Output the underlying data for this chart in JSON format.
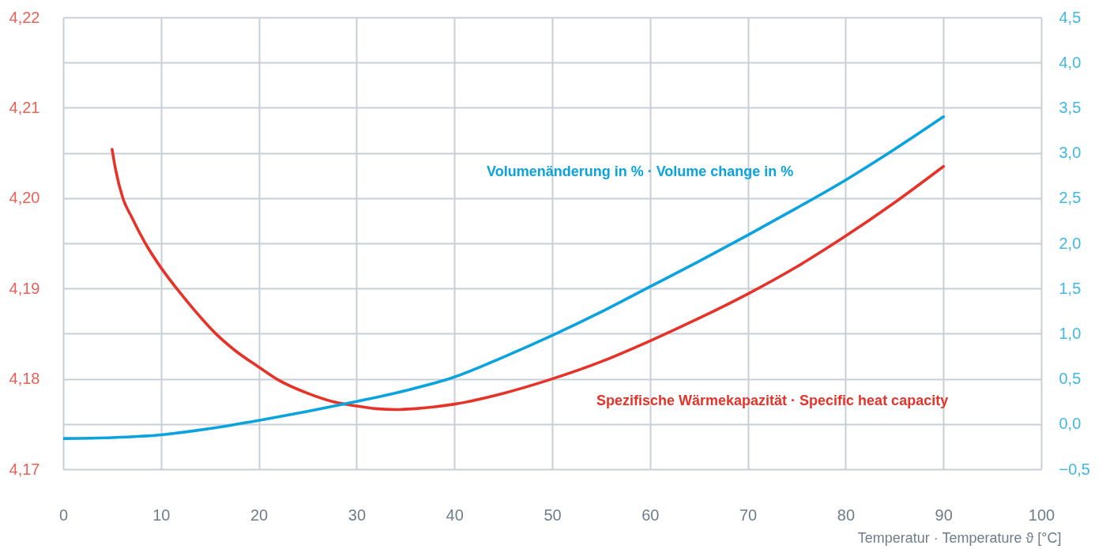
{
  "chart_data": {
    "type": "line",
    "xlabel": "Temperatur · Temperature ϑ [°C]",
    "xlim": [
      0,
      100
    ],
    "xticks": [
      0,
      10,
      20,
      30,
      40,
      50,
      60,
      70,
      80,
      90,
      100
    ],
    "ylim": [
      4.17,
      4.22
    ],
    "yticks": [
      {
        "value": 4.17,
        "label": "4,17"
      },
      {
        "value": 4.18,
        "label": "4,18"
      },
      {
        "value": 4.19,
        "label": "4,19"
      },
      {
        "value": 4.2,
        "label": "4,20"
      },
      {
        "value": 4.21,
        "label": "4,21"
      },
      {
        "value": 4.22,
        "label": "4,22"
      }
    ],
    "y2lim": [
      -0.5,
      4.5
    ],
    "y2ticks": [
      {
        "value": -0.5,
        "label": "−0,5"
      },
      {
        "value": 0,
        "label": "0,0"
      },
      {
        "value": 0.5,
        "label": "0,5"
      },
      {
        "value": 1,
        "label": "1,0"
      },
      {
        "value": 1.5,
        "label": "1,5"
      },
      {
        "value": 2,
        "label": "2,0"
      },
      {
        "value": 2.5,
        "label": "2,5"
      },
      {
        "value": 3,
        "label": "3,0"
      },
      {
        "value": 3.5,
        "label": "3,5"
      },
      {
        "value": 4,
        "label": "4,0"
      },
      {
        "value": 4.5,
        "label": "4,5"
      }
    ],
    "grid": true,
    "series": [
      {
        "name": "Spezifische Wärmekapazität · Specific heat capacity",
        "color": "#e6332a",
        "x": [
          5,
          5.35,
          6.1,
          7,
          8.4,
          10,
          11.6,
          13.5,
          15.6,
          17.5,
          20,
          21.8,
          25,
          27.5,
          30,
          32,
          34,
          36,
          38,
          40,
          45,
          50,
          55,
          60,
          65,
          70,
          75,
          80,
          85,
          90
        ],
        "values": [
          4.2054,
          4.2032,
          4.2,
          4.1979,
          4.195,
          4.1923,
          4.19,
          4.1875,
          4.185,
          4.1832,
          4.1813,
          4.18,
          4.1784,
          4.1775,
          4.177,
          4.1767,
          4.1766,
          4.1767,
          4.1769,
          4.1772,
          4.1784,
          4.18,
          4.1819,
          4.1842,
          4.1867,
          4.1894,
          4.1924,
          4.1958,
          4.1995,
          4.2035
        ]
      },
      {
        "name": "Volumenänderung in % · Volume change in %",
        "color": "#0aa3de",
        "axis": "y2",
        "x": [
          0,
          5,
          10,
          15,
          20,
          25,
          30,
          35,
          40,
          45,
          50,
          55,
          60,
          65,
          70,
          75,
          80,
          85,
          90
        ],
        "values": [
          -0.16,
          -0.15,
          -0.12,
          -0.05,
          0.04,
          0.14,
          0.25,
          0.37,
          0.52,
          0.74,
          0.98,
          1.24,
          1.52,
          1.8,
          2.09,
          2.39,
          2.7,
          3.04,
          3.4
        ]
      }
    ]
  }
}
